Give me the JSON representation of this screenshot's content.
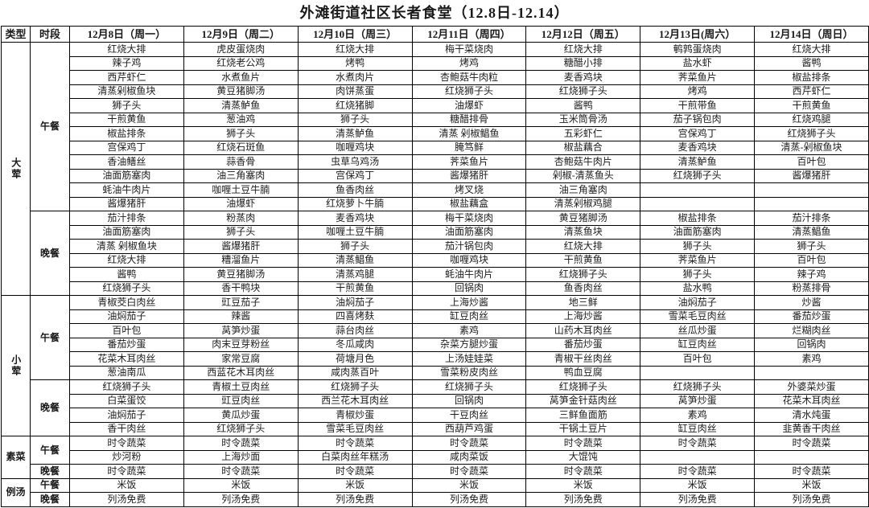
{
  "title": "外滩街道社区长者食堂（12.8日-12.14）",
  "colors": {
    "background": "#ffffff",
    "border": "#000000",
    "text": "#1a1a1a"
  },
  "header": {
    "type_label": "类型",
    "time_label": "时段",
    "days": [
      "12月8日（周一）",
      "12月9日（周二）",
      "12月10日（周三）",
      "12月11日（周四）",
      "12月12日（周五）",
      "12月13日(周六）",
      "12月14日（周日）"
    ]
  },
  "sections": [
    {
      "category": "大荤",
      "meals": [
        {
          "label": "午餐",
          "rows": [
            [
              "红烧大排",
              "虎皮蛋烧肉",
              "红烧大排",
              "梅干菜烧肉",
              "红烧大排",
              "鹌鹑蛋烧肉",
              "红烧大排"
            ],
            [
              "辣子鸡",
              "红烧老公鸡",
              "烤鸭",
              "烤鸡",
              "糖醋小排",
              "盐水虾",
              "酱鸭"
            ],
            [
              "西芹虾仁",
              "水煮鱼片",
              "水煮肉片",
              "杏鲍菇牛肉粒",
              "麦香鸡块",
              "荠菜鱼片",
              "椒盐排条"
            ],
            [
              "清蒸剁椒鱼块",
              "黄豆猪脚汤",
              "肉饼蒸蛋",
              "红烧狮子头",
              "红烧狮子头",
              "烤鸡",
              "西芹虾仁"
            ],
            [
              "狮子头",
              "清蒸鲈鱼",
              "红烧猪脚",
              "油爆虾",
              "酱鸭",
              "干煎带鱼",
              "干煎黄鱼"
            ],
            [
              "干煎黄鱼",
              "葱油鸡",
              "狮子头",
              "糖醋排骨",
              "玉米筒骨汤",
              "茄子锅包肉",
              "红烧鸡腿"
            ],
            [
              "椒盐排条",
              "狮子头",
              "清蒸鲈鱼",
              "清蒸 剁椒鲳鱼",
              "五彩虾仁",
              "宫保鸡丁",
              "红烧狮子头"
            ],
            [
              "宫保鸡丁",
              "红烧石斑鱼",
              "咖喱鸡块",
              "腌笃鲜",
              "椒盐藕合",
              "麦香鸡块",
              "清蒸-剁椒鱼块"
            ],
            [
              "香油鳝丝",
              "蒜香骨",
              "虫草乌鸡汤",
              "荠菜鱼片",
              "杏鲍菇牛肉片",
              "清蒸鲈鱼",
              "百叶包"
            ],
            [
              "油面筋塞肉",
              "油三角塞肉",
              "宫保鸡丁",
              "酱爆猪肝",
              "剁椒-清蒸鱼头",
              "红烧狮子头",
              "酱爆猪肝"
            ],
            [
              "蚝油牛肉片",
              "咖喱土豆牛腩",
              "鱼香肉丝",
              "烤叉烧",
              "油三角塞肉",
              "",
              ""
            ],
            [
              "酱爆猪肝",
              "油爆虾",
              "红烧萝卜牛腩",
              "椒盐藕盒",
              "清蒸剁椒鸡腿",
              "",
              ""
            ]
          ]
        },
        {
          "label": "晚餐",
          "rows": [
            [
              "茄汁排条",
              "粉蒸肉",
              "麦香鸡块",
              "梅干菜烧肉",
              "黄豆猪脚汤",
              "椒盐排条",
              "茄汁排条"
            ],
            [
              "油面筋塞肉",
              "狮子头",
              "咖喱土豆牛腩",
              "油面筋塞肉",
              "清蒸鱼块",
              "油面筋塞肉",
              "清蒸鲳鱼"
            ],
            [
              "清蒸 剁椒鱼块",
              "酱爆猪肝",
              "狮子头",
              "茄汁锅包肉",
              "红烧大排",
              "狮子头",
              "狮子头"
            ],
            [
              "红烧大排",
              "糟溜鱼片",
              "清蒸鲳鱼",
              "咖喱鸡块",
              "干煎黄鱼",
              "荠菜鱼片",
              "百叶包"
            ],
            [
              "酱鸭",
              "黄豆猪脚汤",
              "清蒸鸡腿",
              "蚝油牛肉片",
              "红烧狮子头",
              "狮子头",
              "辣子鸡"
            ],
            [
              "红烧狮子头",
              "香干鸭块",
              "干煎黄鱼",
              "回锅肉",
              "鱼香肉丝",
              "盐水鸭",
              "粉蒸排骨"
            ]
          ]
        }
      ]
    },
    {
      "category": "小荤",
      "meals": [
        {
          "label": "午餐",
          "rows": [
            [
              "青椒茭白肉丝",
              "豇豆茄子",
              "油焖茄子",
              "上海炒酱",
              "地三鲜",
              "油焖茄子",
              "炒酱"
            ],
            [
              "油焖茄子",
              "辣酱",
              "四喜烤麸",
              "缸豆肉丝",
              "上海炒酱",
              "雪菜毛豆肉丝",
              "番茄炒蛋"
            ],
            [
              "百叶包",
              "莴笋炒蛋",
              "蒜台肉丝",
              "素鸡",
              "山药木耳肉丝",
              "丝瓜炒蛋",
              "烂糊肉丝"
            ],
            [
              "番茄炒蛋",
              "肉末豆芽粉丝",
              "冬瓜咸肉",
              "杂菜方腿炒蛋",
              "番茄炒蛋",
              "缸豆肉丝",
              "回锅肉"
            ],
            [
              "花菜木耳肉丝",
              "家常豆腐",
              "荷塘月色",
              "上汤娃娃菜",
              "青椒干丝肉丝",
              "百叶包",
              "素鸡"
            ],
            [
              "葱油南瓜",
              "西蓝花木耳肉丝",
              "咸肉蒸百叶",
              "雪菜粉皮肉丝",
              "鸭血豆腐",
              "",
              ""
            ]
          ]
        },
        {
          "label": "晚餐",
          "rows": [
            [
              "红烧狮子头",
              "青椒土豆肉丝",
              "红烧狮子头",
              "红烧狮子头",
              "红烧狮子头",
              "红烧狮子头",
              "外婆菜炒蛋"
            ],
            [
              "白菜蛋饺",
              "豇豆肉丝",
              "西兰花木耳肉丝",
              "回锅肉",
              "莴笋金针菇肉丝",
              "莴笋炒蛋",
              "花菜木耳肉丝"
            ],
            [
              "油焖茄子",
              "黄瓜炒蛋",
              "青椒炒蛋",
              "干豆肉丝",
              "三鲜鱼面筋",
              "素鸡",
              "清水炖蛋"
            ],
            [
              "香干肉丝",
              "红烧狮子头",
              "雪菜毛豆肉丝",
              "西葫芦鸡蛋",
              "干锅土豆片",
              "缸豆肉丝",
              "韭黄香干肉丝"
            ]
          ]
        }
      ]
    },
    {
      "category": "素菜",
      "meals": [
        {
          "label": "午餐",
          "rows": [
            [
              "时令蔬菜",
              "时令蔬菜",
              "时令蔬菜",
              "时令蔬菜",
              "时令蔬菜",
              "时令蔬菜",
              "时令蔬菜"
            ],
            [
              "炒河粉",
              "上海炒面",
              "白菜肉丝年糕汤",
              "咸肉菜饭",
              "大馄饨",
              "",
              ""
            ]
          ]
        },
        {
          "label": "晚餐",
          "rows": [
            [
              "时令蔬菜",
              "时令蔬菜",
              "时令蔬菜",
              "时令蔬菜",
              "时令蔬菜",
              "时令蔬菜",
              "时令蔬菜"
            ]
          ]
        }
      ]
    },
    {
      "category": "例汤",
      "meals": [
        {
          "label": "午餐",
          "rows": [
            [
              "米饭",
              "米饭",
              "米饭",
              "米饭",
              "米饭",
              "米饭",
              "米饭"
            ]
          ]
        },
        {
          "label": "晚餐",
          "rows": [
            [
              "列汤免费",
              "列汤免费",
              "列汤免费",
              "列汤免费",
              "列汤免费",
              "列汤免费",
              "列汤免费"
            ]
          ]
        }
      ]
    }
  ]
}
